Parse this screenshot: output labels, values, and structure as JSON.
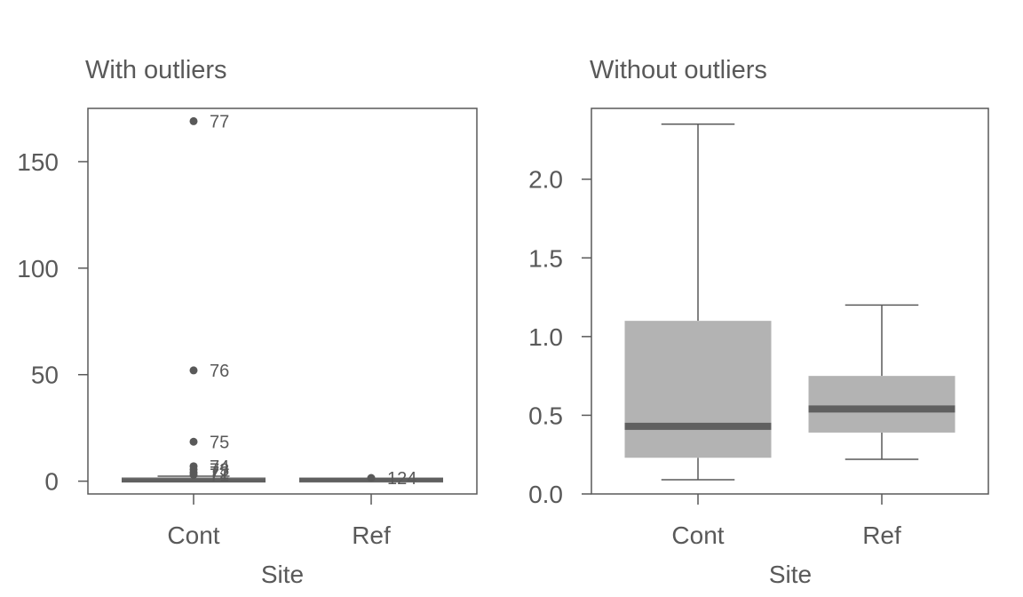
{
  "colors": {
    "text": "#595959",
    "box": "#b3b3b3",
    "median": "#606060",
    "line": "#595959",
    "point": "#595959"
  },
  "chart_data": [
    {
      "type": "box",
      "title": "With outliers",
      "xlabel": "Site",
      "ylabel": "",
      "categories": [
        "Cont",
        "Ref"
      ],
      "ylim": [
        -6,
        175
      ],
      "yticks": [
        0,
        50,
        100,
        150
      ],
      "boxes": [
        {
          "category": "Cont",
          "q1": 0.23,
          "median": 0.43,
          "q3": 1.1,
          "whisker_low": 0.09,
          "whisker_high": 2.35
        },
        {
          "category": "Ref",
          "q1": 0.39,
          "median": 0.54,
          "q3": 0.75,
          "whisker_low": 0.22,
          "whisker_high": 1.2
        }
      ],
      "outliers": [
        {
          "category": "Cont",
          "value": 169,
          "label": "77"
        },
        {
          "category": "Cont",
          "value": 52,
          "label": "76"
        },
        {
          "category": "Cont",
          "value": 18.5,
          "label": "75"
        },
        {
          "category": "Cont",
          "value": 7,
          "label": "74"
        },
        {
          "category": "Cont",
          "value": 5.5,
          "label": "73"
        },
        {
          "category": "Cont",
          "value": 4,
          "label": "72"
        },
        {
          "category": "Cont",
          "value": 3,
          "label": "71"
        },
        {
          "category": "Ref",
          "value": 1.5,
          "label": "124"
        }
      ]
    },
    {
      "type": "box",
      "title": "Without outliers",
      "xlabel": "Site",
      "ylabel": "",
      "categories": [
        "Cont",
        "Ref"
      ],
      "ylim": [
        0,
        2.45
      ],
      "yticks": [
        0.0,
        0.5,
        1.0,
        1.5,
        2.0
      ],
      "ytick_labels": [
        "0.0",
        "0.5",
        "1.0",
        "1.5",
        "2.0"
      ],
      "boxes": [
        {
          "category": "Cont",
          "q1": 0.23,
          "median": 0.43,
          "q3": 1.1,
          "whisker_low": 0.09,
          "whisker_high": 2.35
        },
        {
          "category": "Ref",
          "q1": 0.39,
          "median": 0.54,
          "q3": 0.75,
          "whisker_low": 0.22,
          "whisker_high": 1.2
        }
      ],
      "outliers": []
    }
  ]
}
